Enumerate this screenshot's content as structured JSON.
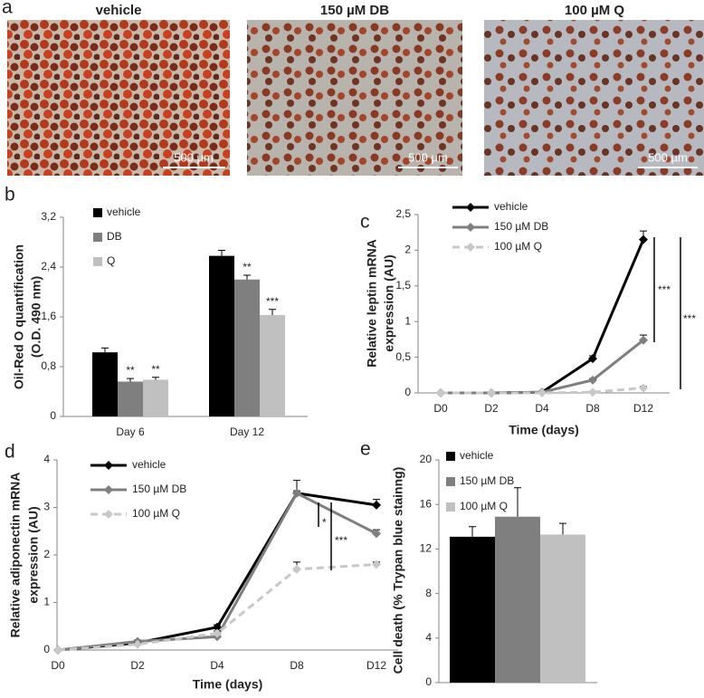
{
  "panel_labels": [
    "a",
    "b",
    "c",
    "d",
    "e"
  ],
  "micrographs": [
    {
      "title": "vehicle",
      "scale_bar": "500 µm"
    },
    {
      "title": "150 µM DB",
      "scale_bar": "500 µm"
    },
    {
      "title": "100 µM Q",
      "scale_bar": "500 µm"
    }
  ],
  "chart_data": [
    {
      "type": "bar",
      "ylabel": [
        "Oil-Red O quantification",
        "(O.D. 490 nm)"
      ],
      "categories": [
        "Day 6",
        "Day 12"
      ],
      "ylim": [
        0,
        3.2
      ],
      "yticks": [
        0,
        {
          "value": 0.8,
          "label": "0,8"
        },
        {
          "value": 1.6,
          "label": "1,6"
        },
        {
          "value": 2.4,
          "label": "2,4"
        },
        {
          "value": 3.2,
          "label": "3,2"
        }
      ],
      "series": [
        {
          "name": "vehicle",
          "color": "#000000",
          "values": [
            1.03,
            2.58
          ],
          "error": [
            0.07,
            0.09
          ]
        },
        {
          "name": "DB",
          "color": "#7f7f7f",
          "values": [
            0.56,
            2.2
          ],
          "error": [
            0.05,
            0.07
          ],
          "sig": [
            "**",
            "**"
          ]
        },
        {
          "name": "Q",
          "color": "#c0c0c0",
          "values": [
            0.59,
            1.63
          ],
          "error": [
            0.04,
            0.09
          ],
          "sig": [
            "**",
            "***"
          ]
        }
      ]
    },
    {
      "type": "line",
      "ylabel": [
        "Relative leptin mRNA",
        "expression (AU)"
      ],
      "xlabel": "Time (days)",
      "categories": [
        "D0",
        "D2",
        "D4",
        "D8",
        "D12"
      ],
      "ylim": [
        0,
        2.5
      ],
      "yticks": [
        0,
        {
          "value": 0.5,
          "label": "0,5"
        },
        1,
        {
          "value": 1.5,
          "label": "1,5"
        },
        2,
        {
          "value": 2.5,
          "label": "2,5"
        }
      ],
      "series": [
        {
          "name": "vehicle",
          "color": "#000000",
          "values": [
            0,
            0,
            0.01,
            0.48,
            2.15
          ],
          "error": [
            0,
            0,
            0,
            0.04,
            0.12
          ]
        },
        {
          "name": "150 µM DB",
          "color": "#7f7f7f",
          "values": [
            0,
            0,
            0.01,
            0.18,
            0.74
          ],
          "error": [
            0,
            0,
            0,
            0.02,
            0.07
          ]
        },
        {
          "name": "100 µM Q",
          "color": "#c8c8c8",
          "dashed": true,
          "values": [
            0,
            0,
            0,
            0.01,
            0.07
          ],
          "error": [
            0,
            0,
            0,
            0.01,
            0.02
          ]
        }
      ],
      "brackets": [
        "***",
        "***"
      ]
    },
    {
      "type": "line",
      "ylabel": [
        "Relative adiponectin mRNA",
        "expression (AU)"
      ],
      "xlabel": "Time (days)",
      "categories": [
        "D0",
        "D2",
        "D4",
        "D8",
        "D12"
      ],
      "ylim": [
        0,
        4
      ],
      "yticks": [
        0,
        1,
        2,
        3,
        4
      ],
      "series": [
        {
          "name": "vehicle",
          "color": "#000000",
          "values": [
            0,
            0.15,
            0.48,
            3.3,
            3.05
          ],
          "error": [
            0,
            0.03,
            0.05,
            0.27,
            0.12
          ]
        },
        {
          "name": "150 µM DB",
          "color": "#7f7f7f",
          "values": [
            0,
            0.18,
            0.28,
            3.3,
            2.45
          ],
          "error": [
            0,
            0.03,
            0.05,
            0.05,
            0.08
          ]
        },
        {
          "name": "100 µM Q",
          "color": "#c8c8c8",
          "dashed": true,
          "values": [
            0,
            0.12,
            0.35,
            1.7,
            1.8
          ],
          "error": [
            0,
            0.03,
            0.05,
            0.15,
            0.05
          ]
        }
      ],
      "brackets": [
        "*",
        "***"
      ]
    },
    {
      "type": "bar",
      "ylabel": [
        "Cell death (% Trypan blue stainng)"
      ],
      "categories": [
        null
      ],
      "ylim": [
        0,
        20
      ],
      "yticks": [
        0,
        4,
        8,
        12,
        16,
        20
      ],
      "series": [
        {
          "name": "vehicle",
          "color": "#000000",
          "values": [
            13.1
          ],
          "error": [
            0.9
          ]
        },
        {
          "name": "150 µM DB",
          "color": "#7f7f7f",
          "values": [
            14.9
          ],
          "error": [
            2.6
          ]
        },
        {
          "name": "100 µM Q",
          "color": "#c0c0c0",
          "values": [
            13.3
          ],
          "error": [
            1.0
          ]
        }
      ]
    }
  ]
}
